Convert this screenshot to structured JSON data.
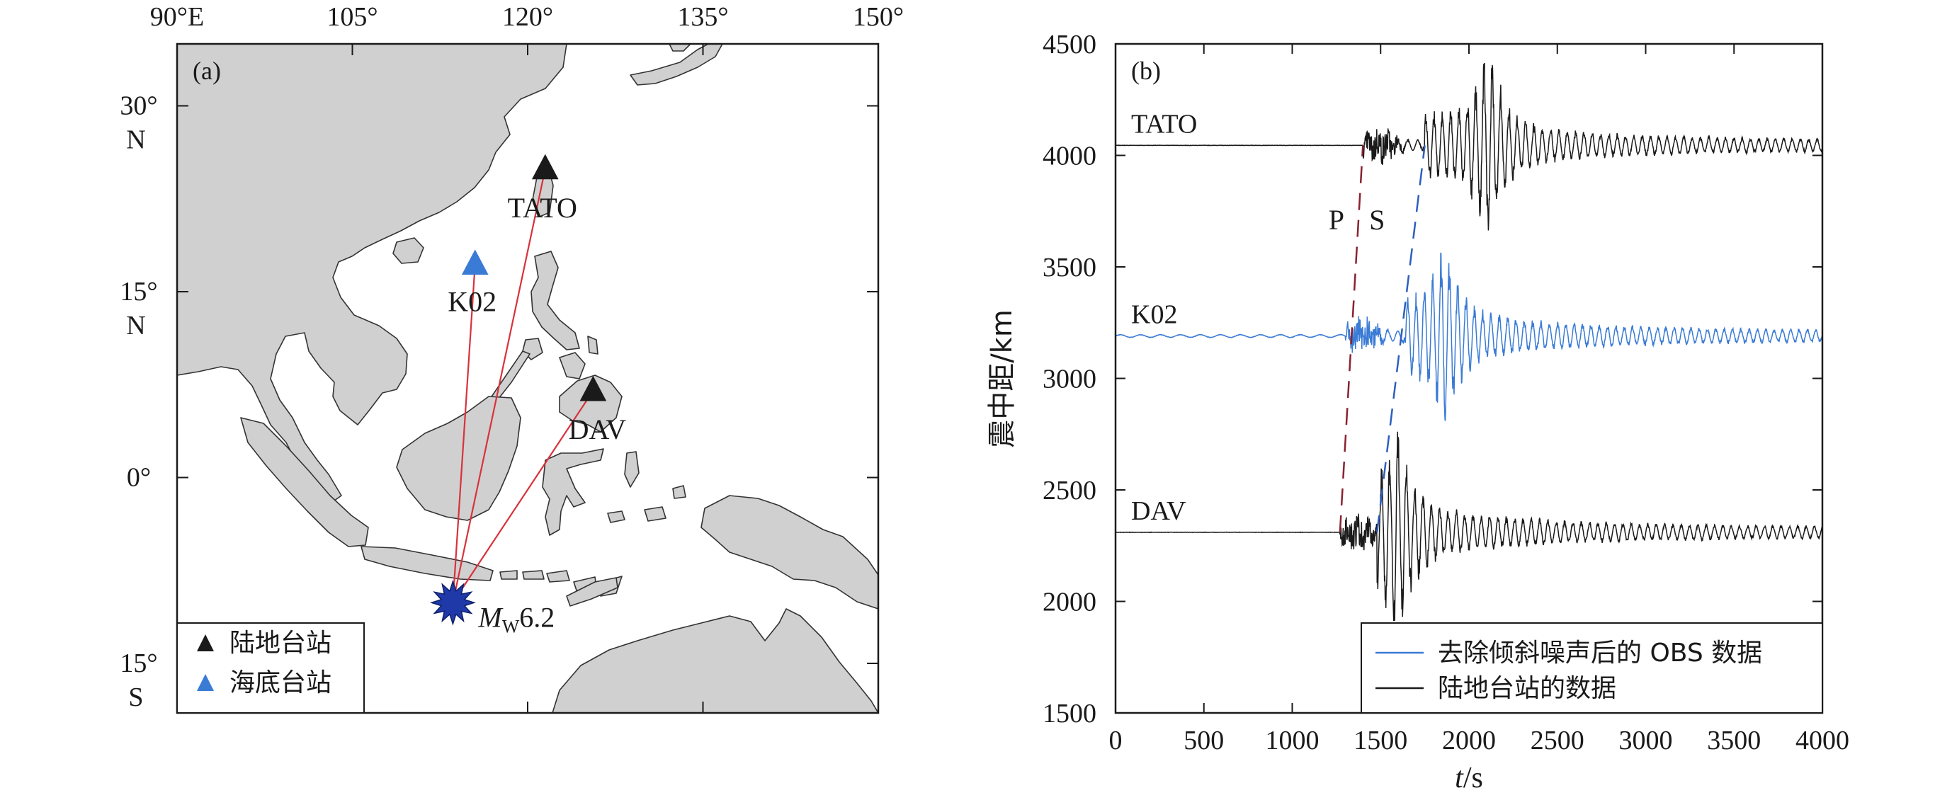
{
  "chart_data": [
    {
      "type": "map",
      "panel_label": "(a)",
      "x_ticks": [
        {
          "value": 90,
          "label": "90°E"
        },
        {
          "value": 105,
          "label": "105°"
        },
        {
          "value": 120,
          "label": "120°"
        },
        {
          "value": 135,
          "label": "135°"
        },
        {
          "value": 150,
          "label": "150°"
        }
      ],
      "y_ticks": [
        {
          "value": 30,
          "line1": "30°",
          "line2": "N"
        },
        {
          "value": 15,
          "line1": "15°",
          "line2": "N"
        },
        {
          "value": 0,
          "line1": "0°",
          "line2": ""
        },
        {
          "value": -15,
          "line1": "15°",
          "line2": "S"
        }
      ],
      "lon_range": [
        90,
        150
      ],
      "lat_range": [
        -19,
        35
      ],
      "stations": [
        {
          "name": "TATO",
          "lon": 121.5,
          "lat": 24.9,
          "kind": "land"
        },
        {
          "name": "K02",
          "lon": 115.5,
          "lat": 17.2,
          "kind": "ocean"
        },
        {
          "name": "DAV",
          "lon": 125.6,
          "lat": 7.0,
          "kind": "land"
        }
      ],
      "event": {
        "lon": 113.6,
        "lat": -10.1,
        "label_main": "M",
        "label_sub": "W",
        "label_rest": "6.2"
      },
      "legend": [
        {
          "label": "陆地台站",
          "color": "#1a1a1a"
        },
        {
          "label": "海底台站",
          "color": "#3a7bd5"
        }
      ]
    },
    {
      "type": "line",
      "panel_label": "(b)",
      "xlabel_main": "t",
      "xlabel_rest": "/s",
      "ylabel": "震中距/km",
      "xlim": [
        0,
        4000
      ],
      "ylim": [
        1500,
        4500
      ],
      "x_ticks": [
        0,
        500,
        1000,
        1500,
        2000,
        2500,
        3000,
        3500,
        4000
      ],
      "y_ticks": [
        1500,
        2000,
        2500,
        3000,
        3500,
        4000,
        4500
      ],
      "series": [
        {
          "name": "TATO",
          "distance": 4045,
          "p_arrival": 1400,
          "s_arrival": 1750,
          "peak_time": 2110,
          "peak_amp": 380,
          "color": "#1a1a1a"
        },
        {
          "name": "K02",
          "distance": 3190,
          "p_arrival": 1300,
          "s_arrival": 1640,
          "peak_time": 1860,
          "peak_amp": 330,
          "color": "#3a7bd5"
        },
        {
          "name": "DAV",
          "distance": 2310,
          "p_arrival": 1270,
          "s_arrival": 1480,
          "peak_time": 1590,
          "peak_amp": 390,
          "color": "#1a1a1a"
        }
      ],
      "phase_lines": [
        {
          "label": "P",
          "from": [
            1270,
            2310
          ],
          "to": [
            1400,
            4045
          ],
          "color": "#8a2232"
        },
        {
          "label": "S",
          "from": [
            1480,
            2310
          ],
          "to": [
            1750,
            4045
          ],
          "color": "#2d5fbf"
        }
      ],
      "legend": [
        {
          "label": "去除倾斜噪声后的 OBS 数据",
          "color": "#3a7bd5"
        },
        {
          "label": "陆地台站的数据",
          "color": "#1a1a1a"
        }
      ]
    }
  ]
}
